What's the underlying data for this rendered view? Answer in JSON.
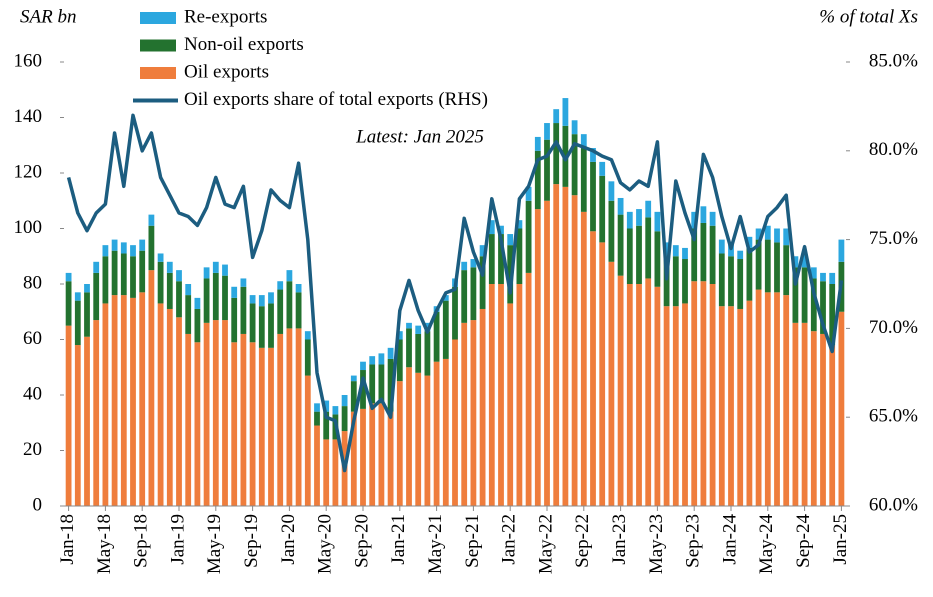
{
  "chart_data": {
    "type": "stacked_bar_line",
    "y_axis_label": "SAR bn",
    "y2_axis_label": "% of total Xs",
    "annotation": "Latest: Jan 2025",
    "categories": [
      "Jan-18",
      null,
      null,
      null,
      "May-18",
      null,
      null,
      null,
      "Sep-18",
      null,
      null,
      null,
      "Jan-19",
      null,
      null,
      null,
      "May-19",
      null,
      null,
      null,
      "Sep-19",
      null,
      null,
      null,
      "Jan-20",
      null,
      null,
      null,
      "May-20",
      null,
      null,
      null,
      "Sep-20",
      null,
      null,
      null,
      "Jan-21",
      null,
      null,
      null,
      "May-21",
      null,
      null,
      null,
      "Sep-21",
      null,
      null,
      null,
      "Jan-22",
      null,
      null,
      null,
      "May-22",
      null,
      null,
      null,
      "Sep-22",
      null,
      null,
      null,
      "Jan-23",
      null,
      null,
      null,
      "May-23",
      null,
      null,
      null,
      "Sep-23",
      null,
      null,
      null,
      "Jan-24",
      null,
      null,
      null,
      "May-24",
      null,
      null,
      null,
      "Sep-24",
      null,
      null,
      null,
      "Jan-25"
    ],
    "series": [
      {
        "name": "Oil exports",
        "color": "#ef7d3c",
        "values": [
          65,
          58,
          61,
          67,
          73,
          76,
          76,
          75,
          77,
          85,
          73,
          71,
          68,
          62,
          59,
          66,
          67,
          67,
          59,
          62,
          59,
          57,
          57,
          62,
          64,
          64,
          47,
          29,
          24,
          24,
          27,
          34,
          35,
          37,
          37,
          34,
          45,
          50,
          48,
          47,
          52,
          53,
          60,
          66,
          67,
          71,
          80,
          80,
          73,
          80,
          84,
          107,
          110,
          116,
          115,
          112,
          106,
          99,
          95,
          88,
          83,
          80,
          80,
          82,
          79,
          72,
          72,
          73,
          81,
          81,
          80,
          72,
          72,
          71,
          74,
          78,
          77,
          77,
          76,
          66,
          66,
          63,
          62,
          58,
          70
        ]
      },
      {
        "name": "Non-oil exports",
        "color": "#23722f",
        "values": [
          16,
          16,
          16,
          17,
          17,
          16,
          15,
          15,
          15,
          16,
          15,
          13,
          13,
          14,
          12,
          16,
          17,
          16,
          16,
          17,
          14,
          15,
          16,
          16,
          17,
          13,
          13,
          5,
          10,
          9,
          9,
          11,
          14,
          14,
          14,
          19,
          15,
          14,
          14,
          16,
          18,
          21,
          19,
          19,
          19,
          19,
          18,
          18,
          21,
          20,
          26,
          21,
          22,
          22,
          22,
          22,
          23,
          25,
          24,
          22,
          22,
          20,
          21,
          22,
          20,
          18,
          18,
          16,
          19,
          21,
          21,
          19,
          18,
          18,
          19,
          18,
          19,
          18,
          18,
          20,
          20,
          19,
          19,
          22,
          18
        ]
      },
      {
        "name": "Re-exports",
        "color": "#2ba7df",
        "values": [
          3,
          3,
          3,
          4,
          4,
          4,
          4,
          4,
          4,
          4,
          3,
          4,
          4,
          4,
          4,
          4,
          4,
          4,
          4,
          3,
          3,
          4,
          4,
          3,
          4,
          3,
          3,
          3,
          4,
          3,
          4,
          2,
          3,
          3,
          4,
          4,
          3,
          2,
          3,
          3,
          2,
          2,
          3,
          3,
          3,
          4,
          5,
          3,
          4,
          3,
          5,
          5,
          6,
          5,
          10,
          5,
          5,
          5,
          5,
          7,
          6,
          6,
          6,
          6,
          7,
          5,
          4,
          4,
          6,
          6,
          5,
          5,
          5,
          3,
          4,
          4,
          5,
          5,
          6,
          4,
          5,
          4,
          3,
          4,
          8
        ]
      },
      {
        "name": "Oil exports share of total exports (RHS)",
        "color": "#1c5d80",
        "axis": "y2",
        "values": [
          78.5,
          76.5,
          75.5,
          76.5,
          77,
          81,
          78,
          82,
          80,
          81,
          78.5,
          77.5,
          76.5,
          76.3,
          75.8,
          76.8,
          78.5,
          77,
          76.8,
          78,
          74,
          75.5,
          77.8,
          77.2,
          76.8,
          79.3,
          75,
          67.5,
          65,
          64.8,
          62,
          64.8,
          67.2,
          65.5,
          66,
          65,
          71,
          72.7,
          71,
          69.8,
          71,
          72,
          72.2,
          76.2,
          74.3,
          73,
          77.3,
          75,
          72,
          77.3,
          78,
          79.5,
          79.7,
          80.5,
          79.5,
          80.4,
          80.2,
          80,
          79.7,
          79.5,
          78.2,
          77.8,
          78.3,
          78,
          80.5,
          72.8,
          78.3,
          76.5,
          75,
          79.8,
          78.5,
          76.3,
          74.5,
          76.3,
          74.3,
          74.7,
          76.3,
          76.8,
          77.5,
          72.5,
          74.6,
          72,
          70.2,
          68.7,
          72.7
        ]
      }
    ],
    "legend_order": [
      2,
      1,
      0,
      3
    ],
    "ylim": [
      0,
      160
    ],
    "yticks": [
      0,
      20,
      40,
      60,
      80,
      100,
      120,
      140,
      160
    ],
    "y2lim": [
      60,
      85
    ],
    "y2ticks": [
      {
        "value": 60,
        "label": "60.0%"
      },
      {
        "value": 65,
        "label": "65.0%"
      },
      {
        "value": 70,
        "label": "70.0%"
      },
      {
        "value": 75,
        "label": "75.0%"
      },
      {
        "value": 80,
        "label": "80.0%"
      },
      {
        "value": 85,
        "label": "85.0%"
      }
    ]
  }
}
